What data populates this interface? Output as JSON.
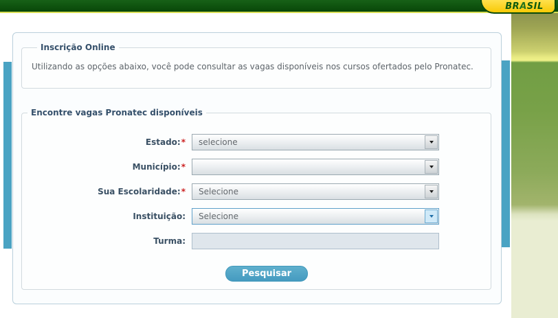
{
  "header": {
    "brand": {
      "part1": "BR",
      "part2": "A",
      "part3": "SIL"
    }
  },
  "panel": {
    "intro": {
      "legend": "Inscrição Online",
      "text": "Utilizando as opções abaixo, você pode consultar as vagas disponíveis nos cursos ofertados pelo Pronatec."
    },
    "search": {
      "legend": "Encontre vagas Pronatec disponíveis",
      "required_marker": "*",
      "fields": [
        {
          "label": "Estado:",
          "required": true,
          "type": "select",
          "value": "selecione"
        },
        {
          "label": "Município:",
          "required": true,
          "type": "select",
          "value": ""
        },
        {
          "label": "Sua Escolaridade:",
          "required": true,
          "type": "select",
          "value": "Selecione"
        },
        {
          "label": "Instituição:",
          "required": false,
          "type": "select",
          "value": "Selecione",
          "focused": true
        },
        {
          "label": "Turma:",
          "required": false,
          "type": "text",
          "value": "",
          "disabled": true
        }
      ],
      "submit_label": "Pesquisar"
    }
  },
  "colors": {
    "header_green": "#0a4e0a",
    "header_underline_yellow": "#d9df55",
    "brand_yellow": "#f8c905",
    "brand_text_green": "#0e5a0e",
    "accent_teal": "#4aa3c3",
    "button_blue": "#459bc0",
    "required_red": "#cc2222",
    "legend_navy": "#35506b",
    "side_green": "#78a148",
    "side_olive": "#9da453",
    "side_cream": "#e9edd2"
  }
}
